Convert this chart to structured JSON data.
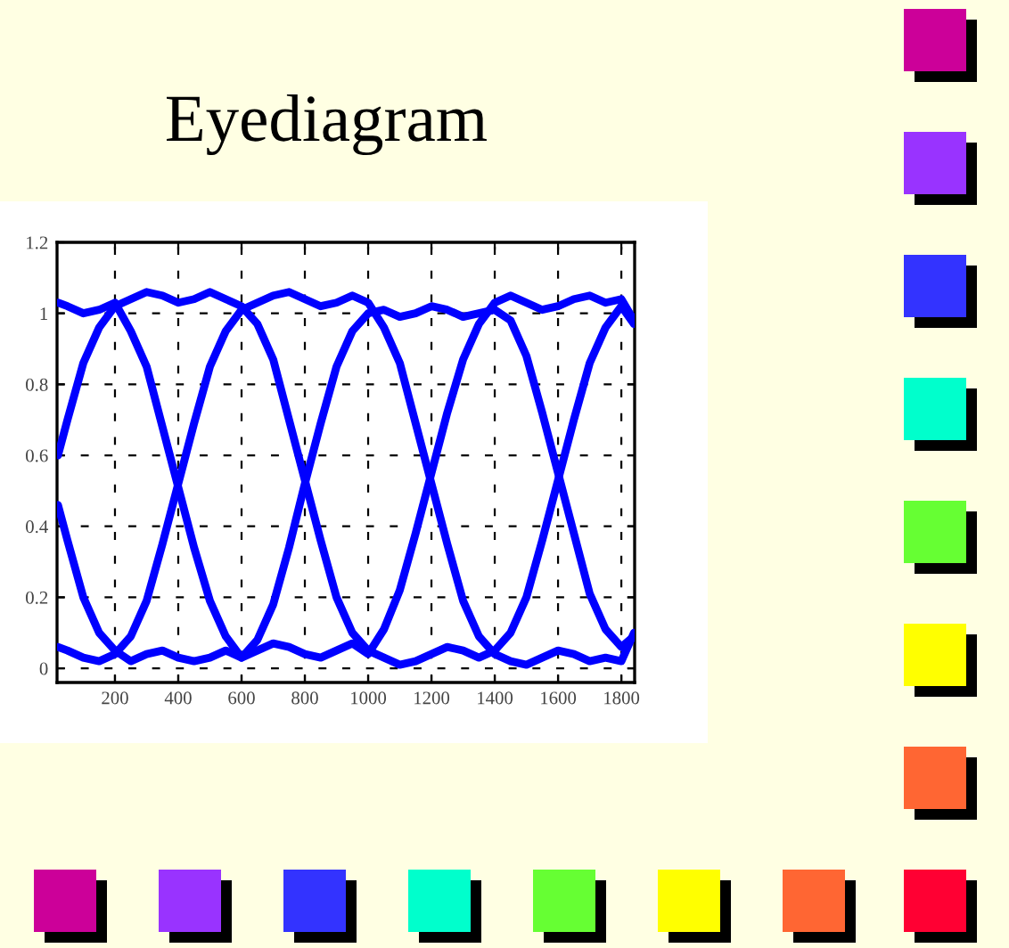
{
  "chart_data": {
    "type": "line",
    "title": "Eyediagram",
    "x": [
      20,
      50,
      100,
      150,
      200,
      250,
      300,
      350,
      400,
      450,
      500,
      550,
      600,
      650,
      700,
      750,
      800,
      850,
      900,
      950,
      1000,
      1050,
      1100,
      1150,
      1200,
      1250,
      1300,
      1350,
      1400,
      1450,
      1500,
      1550,
      1600,
      1650,
      1700,
      1750,
      1800,
      1840
    ],
    "series": [
      {
        "color": "#0000ff",
        "values": [
          0.6,
          0.7,
          0.86,
          0.96,
          1.02,
          1.04,
          1.06,
          1.05,
          1.03,
          1.04,
          1.06,
          1.04,
          1.02,
          0.97,
          0.87,
          0.7,
          0.53,
          0.36,
          0.2,
          0.1,
          0.05,
          0.03,
          0.01,
          0.02,
          0.04,
          0.06,
          0.05,
          0.03,
          0.05,
          0.1,
          0.2,
          0.36,
          0.53,
          0.7,
          0.86,
          0.96,
          1.02,
          0.97
        ]
      },
      {
        "color": "#0000ff",
        "values": [
          0.46,
          0.36,
          0.2,
          0.1,
          0.05,
          0.02,
          0.04,
          0.05,
          0.03,
          0.02,
          0.03,
          0.05,
          0.03,
          0.08,
          0.18,
          0.34,
          0.52,
          0.69,
          0.85,
          0.95,
          1.0,
          1.01,
          0.99,
          1.0,
          1.02,
          1.01,
          0.99,
          1.0,
          1.01,
          0.98,
          0.88,
          0.72,
          0.55,
          0.38,
          0.21,
          0.11,
          0.06,
          0.09
        ]
      },
      {
        "color": "#0000ff",
        "values": [
          1.03,
          1.02,
          1.0,
          1.01,
          1.03,
          0.95,
          0.85,
          0.68,
          0.51,
          0.34,
          0.19,
          0.09,
          0.03,
          0.05,
          0.07,
          0.06,
          0.04,
          0.03,
          0.05,
          0.07,
          0.04,
          0.11,
          0.22,
          0.38,
          0.55,
          0.72,
          0.87,
          0.97,
          1.03,
          1.05,
          1.03,
          1.01,
          1.02,
          1.04,
          1.05,
          1.03,
          1.04,
          0.98
        ]
      },
      {
        "color": "#0000ff",
        "values": [
          0.06,
          0.05,
          0.03,
          0.02,
          0.04,
          0.09,
          0.19,
          0.35,
          0.52,
          0.69,
          0.85,
          0.95,
          1.01,
          1.03,
          1.05,
          1.06,
          1.04,
          1.02,
          1.03,
          1.05,
          1.03,
          0.96,
          0.86,
          0.69,
          0.52,
          0.35,
          0.19,
          0.09,
          0.04,
          0.02,
          0.01,
          0.03,
          0.05,
          0.04,
          0.02,
          0.03,
          0.02,
          0.1
        ]
      }
    ],
    "xlim": [
      17,
      1842
    ],
    "ylim": [
      -0.04,
      1.2
    ],
    "xticks": [
      200,
      400,
      600,
      800,
      1000,
      1200,
      1400,
      1600,
      1800
    ],
    "yticks": [
      0,
      0.2,
      0.4,
      0.6,
      0.8,
      1,
      1.2
    ],
    "grid": true,
    "line_style": "solid",
    "marker": "none"
  }
}
